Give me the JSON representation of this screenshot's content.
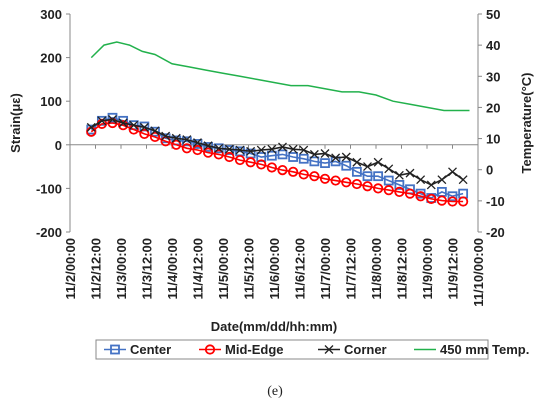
{
  "caption": "(e)",
  "chart_data": {
    "type": "line",
    "xlabel": "Date(mm/dd/hh:mm)",
    "ylabel": "Strain(με)",
    "y2label": "Temperature(°C)",
    "ylim": [
      -200,
      300
    ],
    "y2lim": [
      -20,
      50
    ],
    "yticks": [
      -200,
      -100,
      0,
      100,
      200,
      300
    ],
    "y2ticks": [
      -20,
      -10,
      0,
      10,
      20,
      30,
      40,
      50
    ],
    "xlim_hours": [
      0,
      192
    ],
    "x_tick_labels": [
      "11/2/00:00",
      "11/2/12:00",
      "11/3/00:00",
      "11/3/12:00",
      "11/4/00:00",
      "11/4/12:00",
      "11/5/00:00",
      "11/5/12:00",
      "11/6/00:00",
      "11/6/12:00",
      "11/7/00:00",
      "11/7/12:00",
      "11/8/00:00",
      "11/8/12:00",
      "11/9/00:00",
      "11/9/12:00",
      "11/10/00:00"
    ],
    "legend_position": "bottom",
    "grid": false,
    "series": [
      {
        "name": "Center",
        "axis": "left",
        "color": "#4472C4",
        "marker": "square",
        "x_hours": [
          10,
          15,
          20,
          25,
          30,
          35,
          40,
          45,
          50,
          55,
          60,
          65,
          70,
          75,
          80,
          85,
          90,
          95,
          100,
          105,
          110,
          115,
          120,
          125,
          130,
          135,
          140,
          145,
          150,
          155,
          160,
          165,
          170,
          175,
          180,
          185
        ],
        "values": [
          35,
          55,
          62,
          55,
          45,
          42,
          30,
          15,
          10,
          8,
          2,
          -5,
          -8,
          -12,
          -15,
          -20,
          -28,
          -25,
          -22,
          -28,
          -32,
          -38,
          -42,
          -38,
          -48,
          -62,
          -72,
          -72,
          -82,
          -92,
          -102,
          -112,
          -122,
          -108,
          -118,
          -112
        ]
      },
      {
        "name": "Mid-Edge",
        "axis": "left",
        "color": "#FF0000",
        "marker": "circle",
        "x_hours": [
          10,
          15,
          20,
          25,
          30,
          35,
          40,
          45,
          50,
          55,
          60,
          65,
          70,
          75,
          80,
          85,
          90,
          95,
          100,
          105,
          110,
          115,
          120,
          125,
          130,
          135,
          140,
          145,
          150,
          155,
          160,
          165,
          170,
          175,
          180,
          185
        ],
        "values": [
          30,
          48,
          50,
          45,
          35,
          25,
          18,
          8,
          0,
          -8,
          -12,
          -18,
          -22,
          -28,
          -35,
          -40,
          -45,
          -52,
          -58,
          -62,
          -68,
          -72,
          -78,
          -82,
          -86,
          -90,
          -95,
          -100,
          -104,
          -108,
          -112,
          -118,
          -124,
          -128,
          -130,
          -130
        ]
      },
      {
        "name": "Corner",
        "axis": "left",
        "color": "#222222",
        "marker": "x",
        "x_hours": [
          10,
          15,
          20,
          25,
          30,
          35,
          40,
          45,
          50,
          55,
          60,
          65,
          70,
          75,
          80,
          85,
          90,
          95,
          100,
          105,
          110,
          115,
          120,
          125,
          130,
          135,
          140,
          145,
          150,
          155,
          160,
          165,
          170,
          175,
          180,
          185
        ],
        "values": [
          40,
          55,
          58,
          50,
          45,
          40,
          32,
          20,
          15,
          12,
          5,
          -2,
          -8,
          -10,
          -12,
          -15,
          -12,
          -10,
          -5,
          -10,
          -12,
          -22,
          -20,
          -30,
          -28,
          -40,
          -50,
          -40,
          -55,
          -70,
          -65,
          -80,
          -92,
          -80,
          -62,
          -80
        ]
      },
      {
        "name": "450 mm Temp.",
        "axis": "right",
        "color": "#22B14C",
        "marker": "none",
        "x_hours": [
          10,
          16,
          22,
          28,
          34,
          40,
          48,
          56,
          64,
          72,
          80,
          88,
          96,
          104,
          112,
          120,
          128,
          136,
          144,
          152,
          160,
          168,
          176,
          184,
          188
        ],
        "values": [
          36,
          40,
          41,
          40,
          38,
          37,
          34,
          33,
          32,
          31,
          30,
          29,
          28,
          27,
          27,
          26,
          25,
          25,
          24,
          22,
          21,
          20,
          19,
          19,
          19
        ]
      }
    ]
  }
}
